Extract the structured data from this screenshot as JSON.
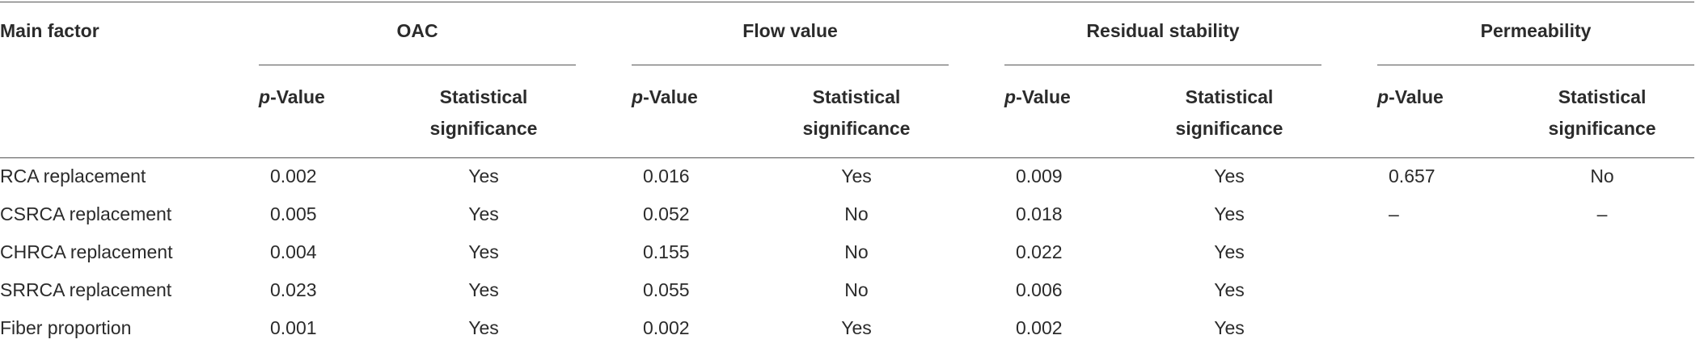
{
  "header": {
    "main_factor": "Main factor",
    "groups": [
      {
        "name": "OAC",
        "columns": [
          "p-Value",
          "Statistical significance"
        ]
      },
      {
        "name": "Flow value",
        "columns": [
          "p-Value",
          "Statistical significance"
        ]
      },
      {
        "name": "Residual stability",
        "columns": [
          "p-Value",
          "Statistical significance"
        ]
      },
      {
        "name": "Permeability",
        "columns": [
          "p-Value",
          "Statistical significance"
        ]
      }
    ]
  },
  "rows": [
    {
      "factor": "RCA replacement",
      "cells": [
        0.002,
        "Yes",
        0.016,
        "Yes",
        0.009,
        "Yes",
        0.657,
        "No"
      ]
    },
    {
      "factor": "CSRCA replacement",
      "cells": [
        0.005,
        "Yes",
        0.052,
        "No",
        0.018,
        "Yes",
        "–",
        "–"
      ]
    },
    {
      "factor": "CHRCA replacement",
      "cells": [
        0.004,
        "Yes",
        0.155,
        "No",
        0.022,
        "Yes",
        null,
        null
      ]
    },
    {
      "factor": "SRRCA replacement",
      "cells": [
        0.023,
        "Yes",
        0.055,
        "No",
        0.006,
        "Yes",
        null,
        null
      ]
    },
    {
      "factor": "Fiber proportion",
      "cells": [
        0.001,
        "Yes",
        0.002,
        "Yes",
        0.002,
        "Yes",
        null,
        null
      ]
    }
  ]
}
